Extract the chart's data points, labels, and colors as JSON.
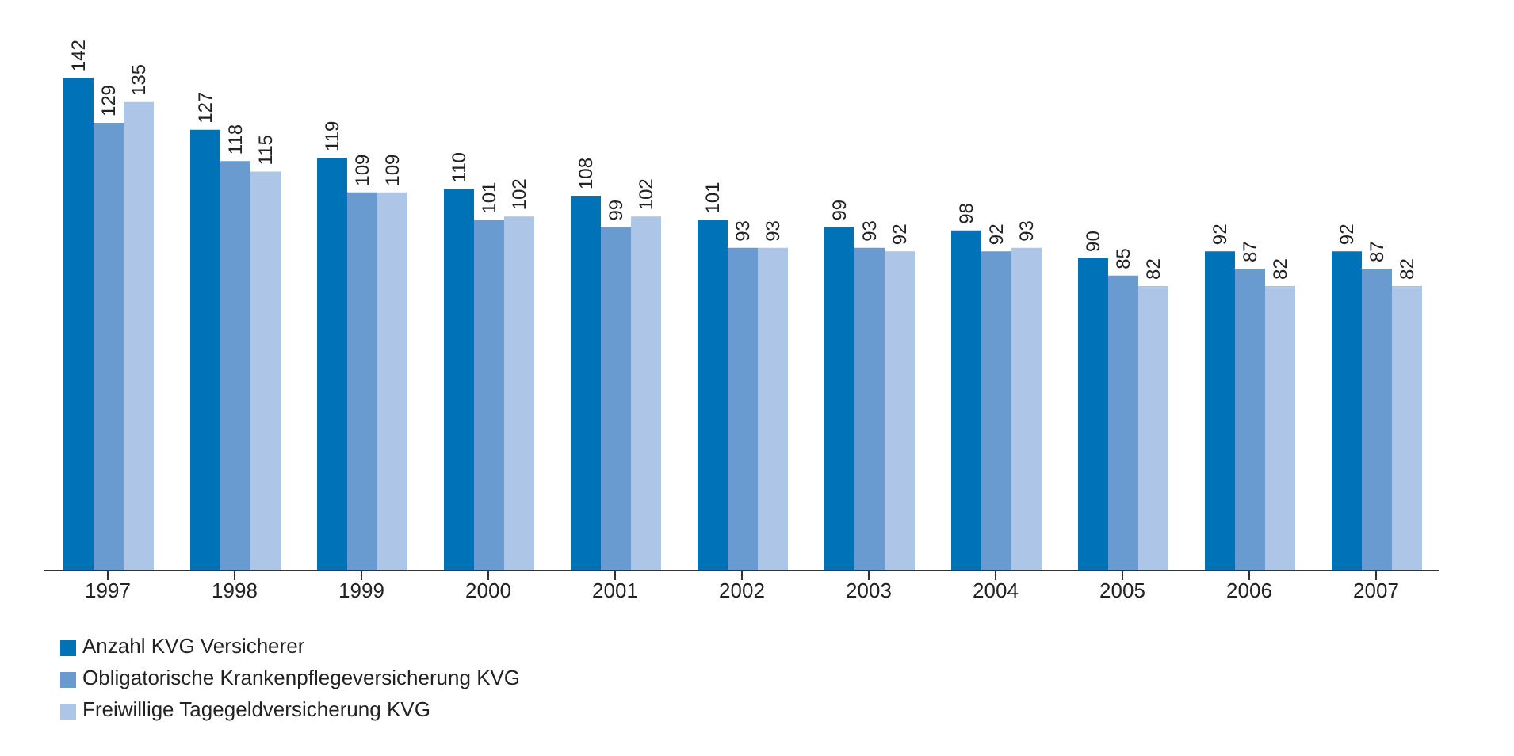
{
  "chart_data": {
    "type": "bar",
    "categories": [
      "1997",
      "1998",
      "1999",
      "2000",
      "2001",
      "2002",
      "2003",
      "2004",
      "2005",
      "2006",
      "2007"
    ],
    "series": [
      {
        "name": "Anzahl KVG Versicherer",
        "color": "#0072b8",
        "values": [
          142,
          127,
          119,
          110,
          108,
          101,
          99,
          98,
          90,
          92,
          92
        ]
      },
      {
        "name": "Obligatorische Krankenpflegeversicherung KVG",
        "color": "#6a9bd0",
        "values": [
          129,
          118,
          109,
          101,
          99,
          93,
          93,
          92,
          85,
          87,
          87
        ]
      },
      {
        "name": "Freiwillige Tagegeldversicherung KVG",
        "color": "#adc5e6",
        "values": [
          135,
          115,
          109,
          102,
          102,
          93,
          92,
          93,
          82,
          82,
          82
        ]
      }
    ],
    "data_labels": true,
    "legend": "bottom left",
    "grid": false,
    "tick_labels": "x"
  }
}
